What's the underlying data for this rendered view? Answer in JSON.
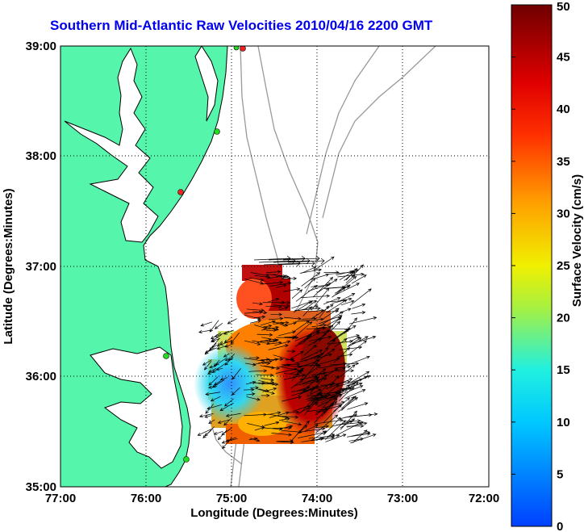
{
  "title": "Southern Mid-Atlantic Raw Velocities 2010/04/16 2200 GMT",
  "xlabel": "Longitude (Degrees:Minutes)",
  "ylabel": "Latitude (Degrees:Minutes)",
  "colorbar": {
    "label": "Surface Velocity (cm/s)",
    "ticks": [
      "0",
      "5",
      "10",
      "15",
      "20",
      "25",
      "30",
      "35",
      "40",
      "45",
      "50"
    ],
    "range": [
      0,
      50
    ]
  },
  "x_ticks": [
    "77:00",
    "76:00",
    "75:00",
    "74:00",
    "73:00",
    "72:00"
  ],
  "y_ticks": [
    "39:00",
    "38:00",
    "37:00",
    "36:00",
    "35:00"
  ],
  "colors": {
    "land": "#55f5ac",
    "water": "#ffffff",
    "title": "#0000ee",
    "bathymetry": "#999999",
    "station_green": "#22dd22",
    "station_red": "#ee2222"
  }
}
